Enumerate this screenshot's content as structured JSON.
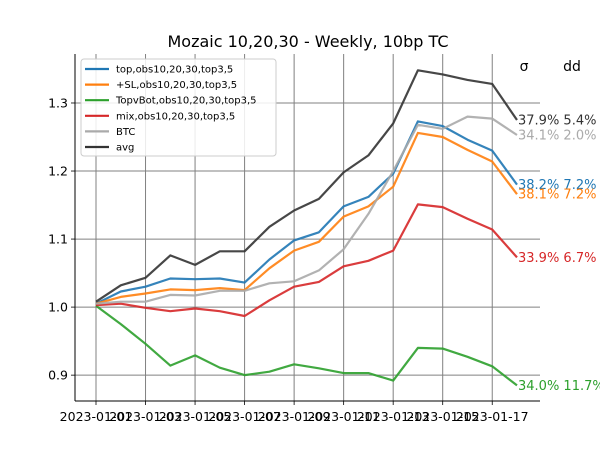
{
  "chart_data": {
    "type": "line",
    "title": "Mozaic 10,20,30 - Weekly, 10bp TC",
    "xlabel": "",
    "ylabel": "",
    "x": [
      "2023-01-01",
      "2023-01-02",
      "2023-01-03",
      "2023-01-04",
      "2023-01-05",
      "2023-01-06",
      "2023-01-07",
      "2023-01-08",
      "2023-01-09",
      "2023-01-10",
      "2023-01-11",
      "2023-01-12",
      "2023-01-13",
      "2023-01-14",
      "2023-01-15",
      "2023-01-16",
      "2023-01-17",
      "2023-01-18"
    ],
    "x_tick_labels": [
      "2023-01-01",
      "2023-01-03",
      "2023-01-05",
      "2023-01-07",
      "2023-01-09",
      "2023-01-11",
      "2023-01-13",
      "2023-01-15",
      "2023-01-17"
    ],
    "ylim": [
      0.862,
      1.372
    ],
    "y_ticks": [
      0.9,
      1.0,
      1.1,
      1.2,
      1.3
    ],
    "grid": true,
    "legend_position": "top-left",
    "column_headers": {
      "sigma": "σ",
      "dd": "dd"
    },
    "series": [
      {
        "name": "top,obs10,20,30,top3,5",
        "color": "#1f77b4",
        "values": [
          1.005,
          1.023,
          1.03,
          1.042,
          1.041,
          1.042,
          1.036,
          1.07,
          1.098,
          1.11,
          1.148,
          1.162,
          1.196,
          1.273,
          1.266,
          1.246,
          1.23,
          1.18
        ],
        "sigma": "38.2%",
        "dd": "7.2%"
      },
      {
        "name": "+SL,obs10,20,30,top3,5",
        "color": "#ff7f0e",
        "values": [
          1.005,
          1.015,
          1.02,
          1.026,
          1.025,
          1.028,
          1.025,
          1.057,
          1.083,
          1.096,
          1.133,
          1.148,
          1.177,
          1.256,
          1.25,
          1.231,
          1.214,
          1.166
        ],
        "sigma": "38.1%",
        "dd": "7.2%"
      },
      {
        "name": "TopvBot,obs10,20,30,top3,5",
        "color": "#2ca02c",
        "values": [
          1.002,
          0.975,
          0.946,
          0.914,
          0.929,
          0.911,
          0.9,
          0.905,
          0.916,
          0.91,
          0.903,
          0.903,
          0.892,
          0.94,
          0.939,
          0.927,
          0.913,
          0.885
        ],
        "sigma": "34.0%",
        "dd": "11.7%"
      },
      {
        "name": "mix,obs10,20,30,top3,5",
        "color": "#d62728",
        "values": [
          1.003,
          1.005,
          0.999,
          0.994,
          0.998,
          0.994,
          0.987,
          1.01,
          1.03,
          1.037,
          1.06,
          1.068,
          1.083,
          1.151,
          1.147,
          1.13,
          1.114,
          1.073
        ],
        "sigma": "33.9%",
        "dd": "6.7%"
      },
      {
        "name": "BTC",
        "color": "#aaaaaa",
        "values": [
          1.005,
          1.008,
          1.008,
          1.018,
          1.017,
          1.024,
          1.024,
          1.035,
          1.038,
          1.054,
          1.085,
          1.137,
          1.2,
          1.268,
          1.262,
          1.28,
          1.277,
          1.253
        ],
        "sigma": "34.1%",
        "dd": "2.0%"
      },
      {
        "name": "avg",
        "color": "#333333",
        "values": [
          1.008,
          1.032,
          1.043,
          1.076,
          1.062,
          1.082,
          1.082,
          1.118,
          1.142,
          1.159,
          1.198,
          1.223,
          1.27,
          1.348,
          1.342,
          1.334,
          1.328,
          1.275
        ],
        "sigma": "37.9%",
        "dd": "5.4%"
      }
    ]
  }
}
